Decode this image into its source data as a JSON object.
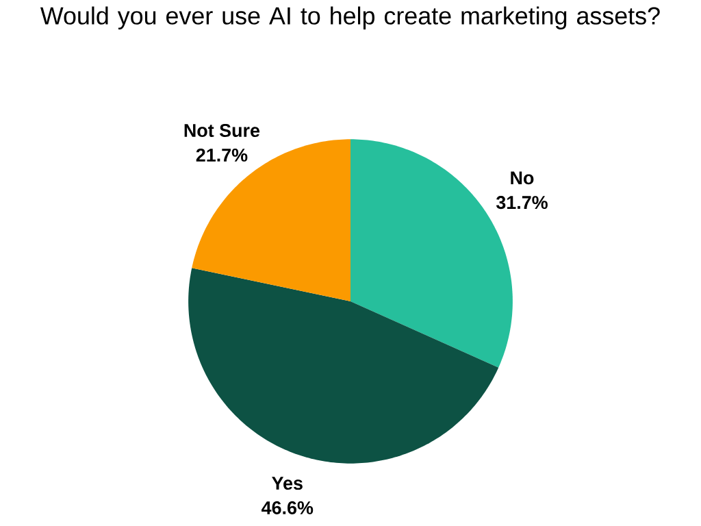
{
  "chart_data": {
    "type": "pie",
    "title": "Would you ever use AI to help create marketing assets?",
    "categories": [
      "No",
      "Yes",
      "Not Sure"
    ],
    "values": [
      31.7,
      46.6,
      21.7
    ],
    "value_labels": [
      "31.7%",
      "46.6%",
      "21.7%"
    ],
    "colors": [
      "#26bf9c",
      "#0d5244",
      "#fb9a00"
    ]
  }
}
